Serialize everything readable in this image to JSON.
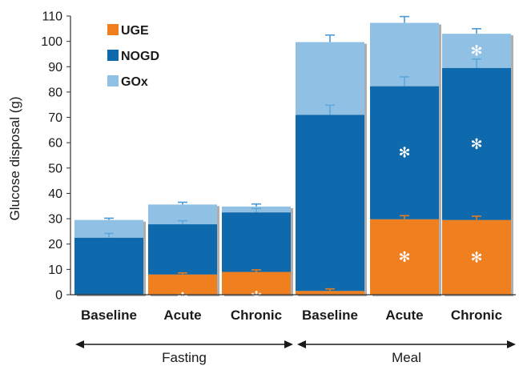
{
  "chart_data": {
    "type": "bar",
    "stacked": true,
    "title": "",
    "xlabel": "",
    "ylabel": "Glucose disposal (g)",
    "ylim": [
      0,
      110
    ],
    "yticks": [
      0,
      10,
      20,
      30,
      40,
      50,
      60,
      70,
      80,
      90,
      100,
      110
    ],
    "grid": false,
    "legend_position": "top-left",
    "categories": [
      "Baseline",
      "Acute",
      "Chronic",
      "Baseline",
      "Acute",
      "Chronic"
    ],
    "groups": [
      {
        "label": "Fasting",
        "categories": [
          0,
          1,
          2
        ]
      },
      {
        "label": "Meal",
        "categories": [
          3,
          4,
          5
        ]
      }
    ],
    "series": [
      {
        "name": "UGE",
        "color": "#f07f1f",
        "values": [
          0,
          8,
          9,
          1.5,
          29.8,
          29.5
        ],
        "error_tops": [
          null,
          8.6,
          9.8,
          2.3,
          31.2,
          31
        ],
        "significant": [
          false,
          true,
          true,
          false,
          true,
          true
        ]
      },
      {
        "name": "NOGD",
        "color": "#0e6aac",
        "values": [
          22.5,
          19.8,
          23.5,
          69.5,
          52.5,
          60
        ],
        "error_tops": [
          24.2,
          29.2,
          34,
          74.8,
          86,
          93
        ],
        "significant": [
          false,
          false,
          false,
          false,
          true,
          true
        ]
      },
      {
        "name": "GOx",
        "color": "#90c1e5",
        "values": [
          7,
          7.8,
          2.3,
          28.7,
          25,
          13.5
        ],
        "error_tops": [
          30.2,
          36.5,
          35.8,
          102.5,
          109.8,
          105
        ],
        "significant": [
          false,
          false,
          false,
          false,
          false,
          true
        ]
      }
    ],
    "significance_marker": "✻"
  }
}
